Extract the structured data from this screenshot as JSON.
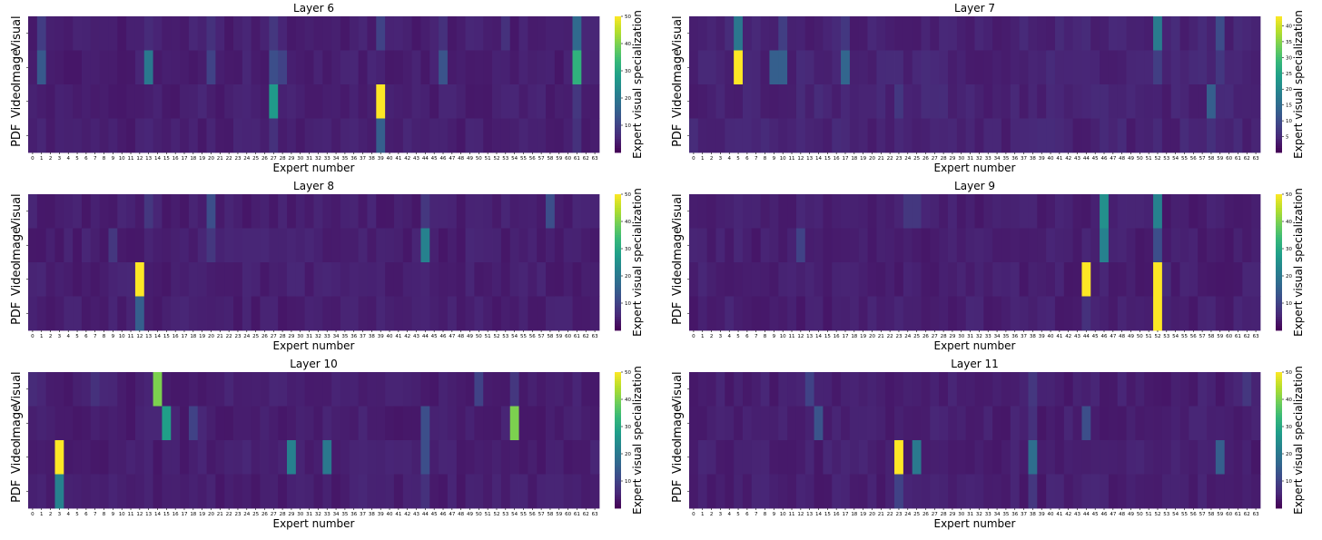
{
  "figure": {
    "xlabel": "Expert number",
    "colorbar_label": "Expert visual specialization",
    "row_labels": [
      "Visual",
      "Image",
      "Video",
      "PDF"
    ],
    "colormap": "viridis",
    "colormap_stops": [
      "#440154",
      "#482878",
      "#3e4989",
      "#31688e",
      "#26828e",
      "#1f9e89",
      "#35b779",
      "#6ece58",
      "#b5de2b",
      "#fde725"
    ]
  },
  "chart_data": [
    {
      "type": "heatmap",
      "title": "Layer 6",
      "x_categories": "0-63",
      "rows": [
        "Visual",
        "Image",
        "Video",
        "PDF"
      ],
      "colorbar_ticks": [
        10,
        20,
        30,
        40,
        50
      ],
      "vmax": 50,
      "baseline": 3,
      "cells": {
        "Visual": {
          "1": 9,
          "13": 6,
          "20": 7,
          "27": 8,
          "39": 10,
          "46": 7,
          "53": 7,
          "61": 17
        },
        "Image": {
          "1": 14,
          "13": 20,
          "20": 10,
          "27": 12,
          "28": 10,
          "46": 13,
          "61": 32
        },
        "Video": {
          "27": 27,
          "39": 50,
          "61": 8
        },
        "PDF": {
          "27": 7,
          "39": 15,
          "61": 7
        }
      }
    },
    {
      "type": "heatmap",
      "title": "Layer 7",
      "x_categories": "0-63",
      "rows": [
        "Visual",
        "Image",
        "Video",
        "PDF"
      ],
      "colorbar_ticks": [
        5,
        10,
        15,
        20,
        25,
        30,
        35,
        40
      ],
      "vmax": 43,
      "baseline": 3,
      "cells": {
        "Visual": {
          "5": 17,
          "10": 8,
          "17": 7,
          "52": 18,
          "59": 10
        },
        "Image": {
          "5": 43,
          "9": 13,
          "10": 13,
          "17": 14,
          "52": 8,
          "59": 7
        },
        "Video": {
          "23": 7,
          "58": 13
        },
        "PDF": {
          "58": 6
        }
      }
    },
    {
      "type": "heatmap",
      "title": "Layer 8",
      "x_categories": "0-63",
      "rows": [
        "Visual",
        "Image",
        "Video",
        "PDF"
      ],
      "colorbar_ticks": [
        10,
        20,
        30,
        40,
        50
      ],
      "vmax": 50,
      "baseline": 3,
      "cells": {
        "Visual": {
          "13": 8,
          "20": 12,
          "44": 8,
          "58": 12
        },
        "Image": {
          "9": 8,
          "20": 8,
          "44": 22
        },
        "Video": {
          "12": 50
        },
        "PDF": {
          "12": 15
        }
      }
    },
    {
      "type": "heatmap",
      "title": "Layer 9",
      "x_categories": "0-63",
      "rows": [
        "Visual",
        "Image",
        "Video",
        "PDF"
      ],
      "colorbar_ticks": [
        10,
        20,
        30,
        40,
        50
      ],
      "vmax": 50,
      "baseline": 3,
      "cells": {
        "Visual": {
          "24": 8,
          "25": 8,
          "46": 25,
          "52": 22
        },
        "Image": {
          "12": 10,
          "46": 22,
          "52": 12
        },
        "Video": {
          "44": 50,
          "52": 50,
          "53": 6
        },
        "PDF": {
          "44": 7,
          "52": 50
        }
      }
    },
    {
      "type": "heatmap",
      "title": "Layer 10",
      "x_categories": "0-63",
      "rows": [
        "Visual",
        "Image",
        "Video",
        "PDF"
      ],
      "colorbar_ticks": [
        10,
        20,
        30,
        40,
        50
      ],
      "vmax": 50,
      "baseline": 3,
      "cells": {
        "Visual": {
          "0": 6,
          "7": 7,
          "14": 40,
          "50": 10,
          "54": 8
        },
        "Image": {
          "15": 28,
          "18": 10,
          "44": 12,
          "54": 40
        },
        "Video": {
          "3": 50,
          "29": 22,
          "33": 20,
          "44": 12
        },
        "PDF": {
          "3": 22,
          "44": 7
        }
      }
    },
    {
      "type": "heatmap",
      "title": "Layer 11",
      "x_categories": "0-63",
      "rows": [
        "Visual",
        "Image",
        "Video",
        "PDF"
      ],
      "colorbar_ticks": [
        10,
        20,
        30,
        40,
        50
      ],
      "vmax": 50,
      "baseline": 3,
      "cells": {
        "Visual": {
          "13": 10,
          "38": 8,
          "62": 8
        },
        "Image": {
          "14": 13,
          "38": 7,
          "44": 12
        },
        "Video": {
          "23": 50,
          "25": 20,
          "38": 18,
          "59": 15
        },
        "PDF": {
          "23": 10,
          "38": 8
        }
      }
    }
  ]
}
